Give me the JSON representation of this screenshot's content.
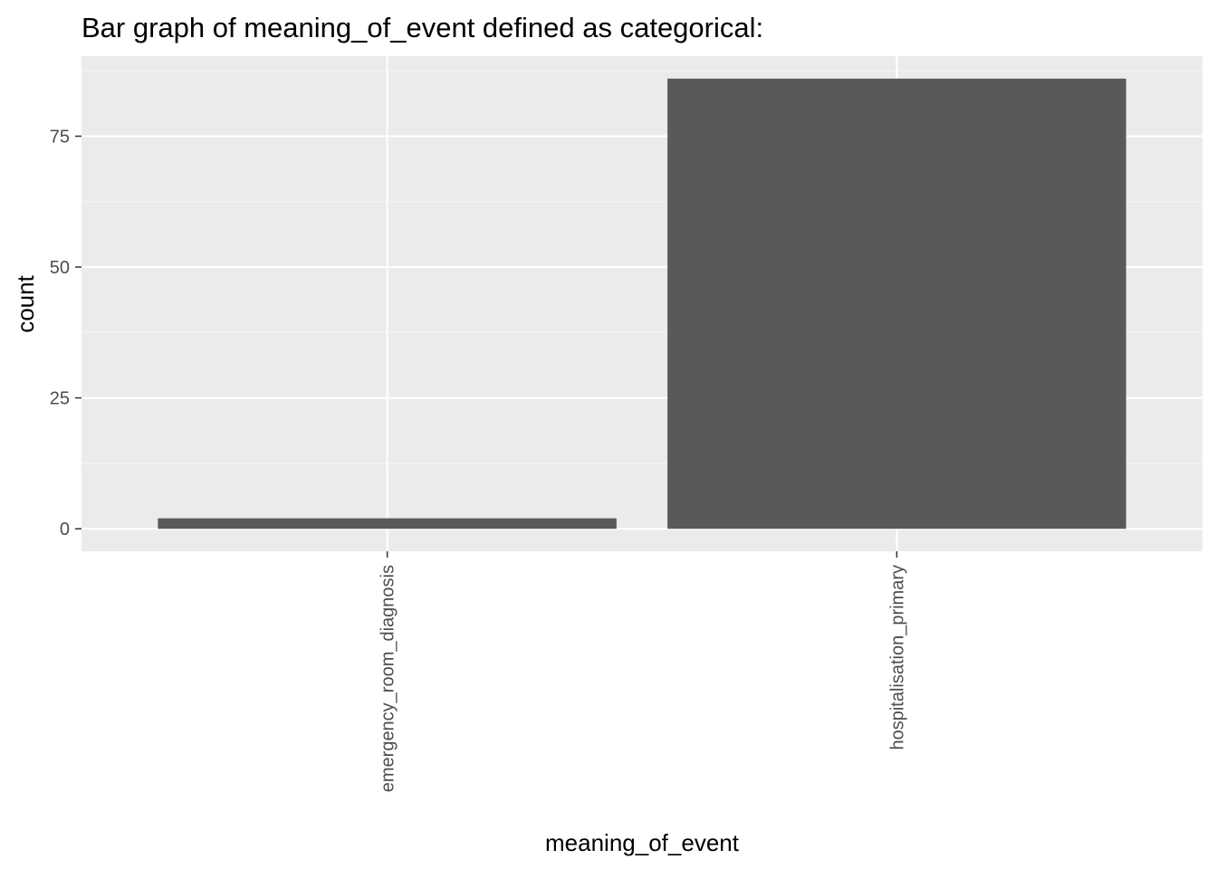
{
  "chart_data": {
    "type": "bar",
    "title": "Bar graph of meaning_of_event defined as categorical:",
    "xlabel": "meaning_of_event",
    "ylabel": "count",
    "categories": [
      "emergency_room_diagnosis",
      "hospitalisation_primary"
    ],
    "values": [
      2,
      86
    ],
    "ylim": [
      -4.3,
      90.3
    ],
    "y_ticks": [
      0,
      25,
      50,
      75
    ],
    "y_tick_labels": [
      "0",
      "25",
      "50",
      "75"
    ],
    "grid": true,
    "x_tick_rotation": "vertical",
    "colors": {
      "bar": "#595959",
      "panel_background": "#ebebeb",
      "grid_major": "#ffffff",
      "grid_minor": "#f5f5f5",
      "tick_text": "#4d4d4d",
      "axis_ticks": "#333333"
    }
  }
}
